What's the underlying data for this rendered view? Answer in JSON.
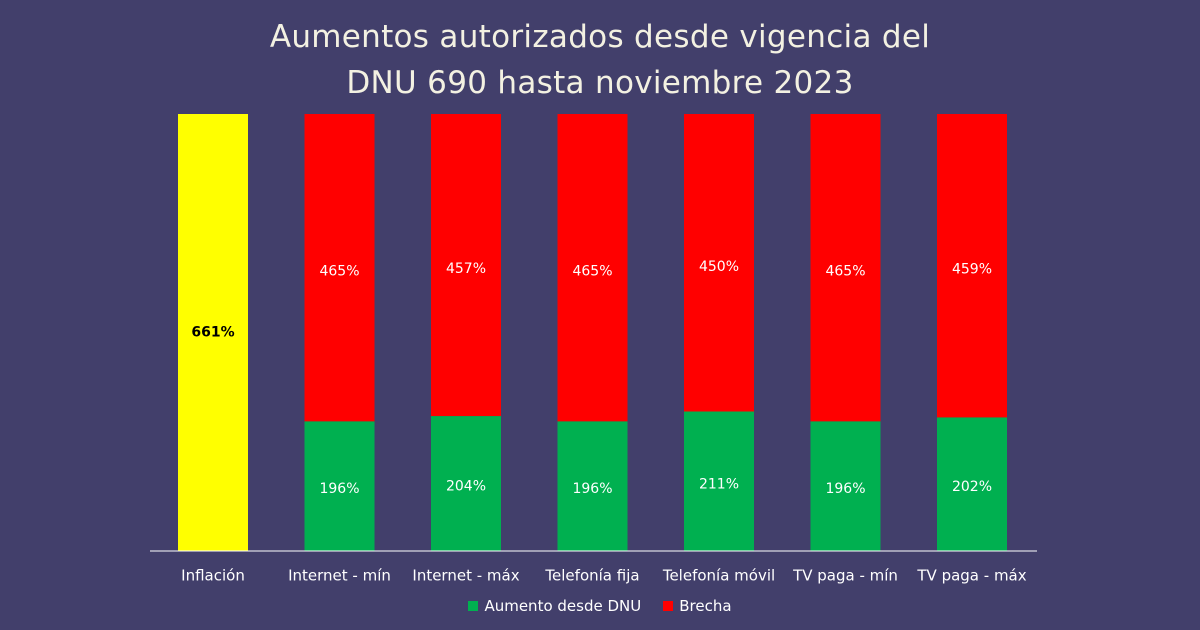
{
  "title_lines": [
    "Aumentos autorizados desde vigencia del",
    "DNU 690 hasta noviembre 2023"
  ],
  "colors": {
    "background": "#423f6b",
    "inflation": "#ffff00",
    "increase": "#00b050",
    "gap": "#ff0000",
    "axis": "#ffffff"
  },
  "chart_data": {
    "type": "bar",
    "stacked": true,
    "title": "Aumentos autorizados desde vigencia del DNU 690 hasta noviembre 2023",
    "categories": [
      "Inflación",
      "Internet - mín",
      "Internet - máx",
      "Telefonía fija",
      "Telefonía móvil",
      "TV paga - mín",
      "TV paga - máx"
    ],
    "series": [
      {
        "name": "Inflación",
        "values": [
          661,
          null,
          null,
          null,
          null,
          null,
          null
        ],
        "labels": [
          "661%",
          "",
          "",
          "",
          "",
          "",
          ""
        ]
      },
      {
        "name": "Aumento desde DNU",
        "values": [
          null,
          196,
          204,
          196,
          211,
          196,
          202
        ],
        "labels": [
          "",
          "196%",
          "204%",
          "196%",
          "211%",
          "196%",
          "202%"
        ]
      },
      {
        "name": "Brecha",
        "values": [
          null,
          465,
          457,
          465,
          450,
          465,
          459
        ],
        "labels": [
          "",
          "465%",
          "457%",
          "465%",
          "450%",
          "465%",
          "459%"
        ]
      }
    ],
    "ylim": [
      0,
      661
    ],
    "xlabel": "",
    "ylabel": "",
    "grid": false,
    "legend_position": "bottom",
    "legend": [
      "Aumento desde DNU",
      "Brecha"
    ]
  }
}
